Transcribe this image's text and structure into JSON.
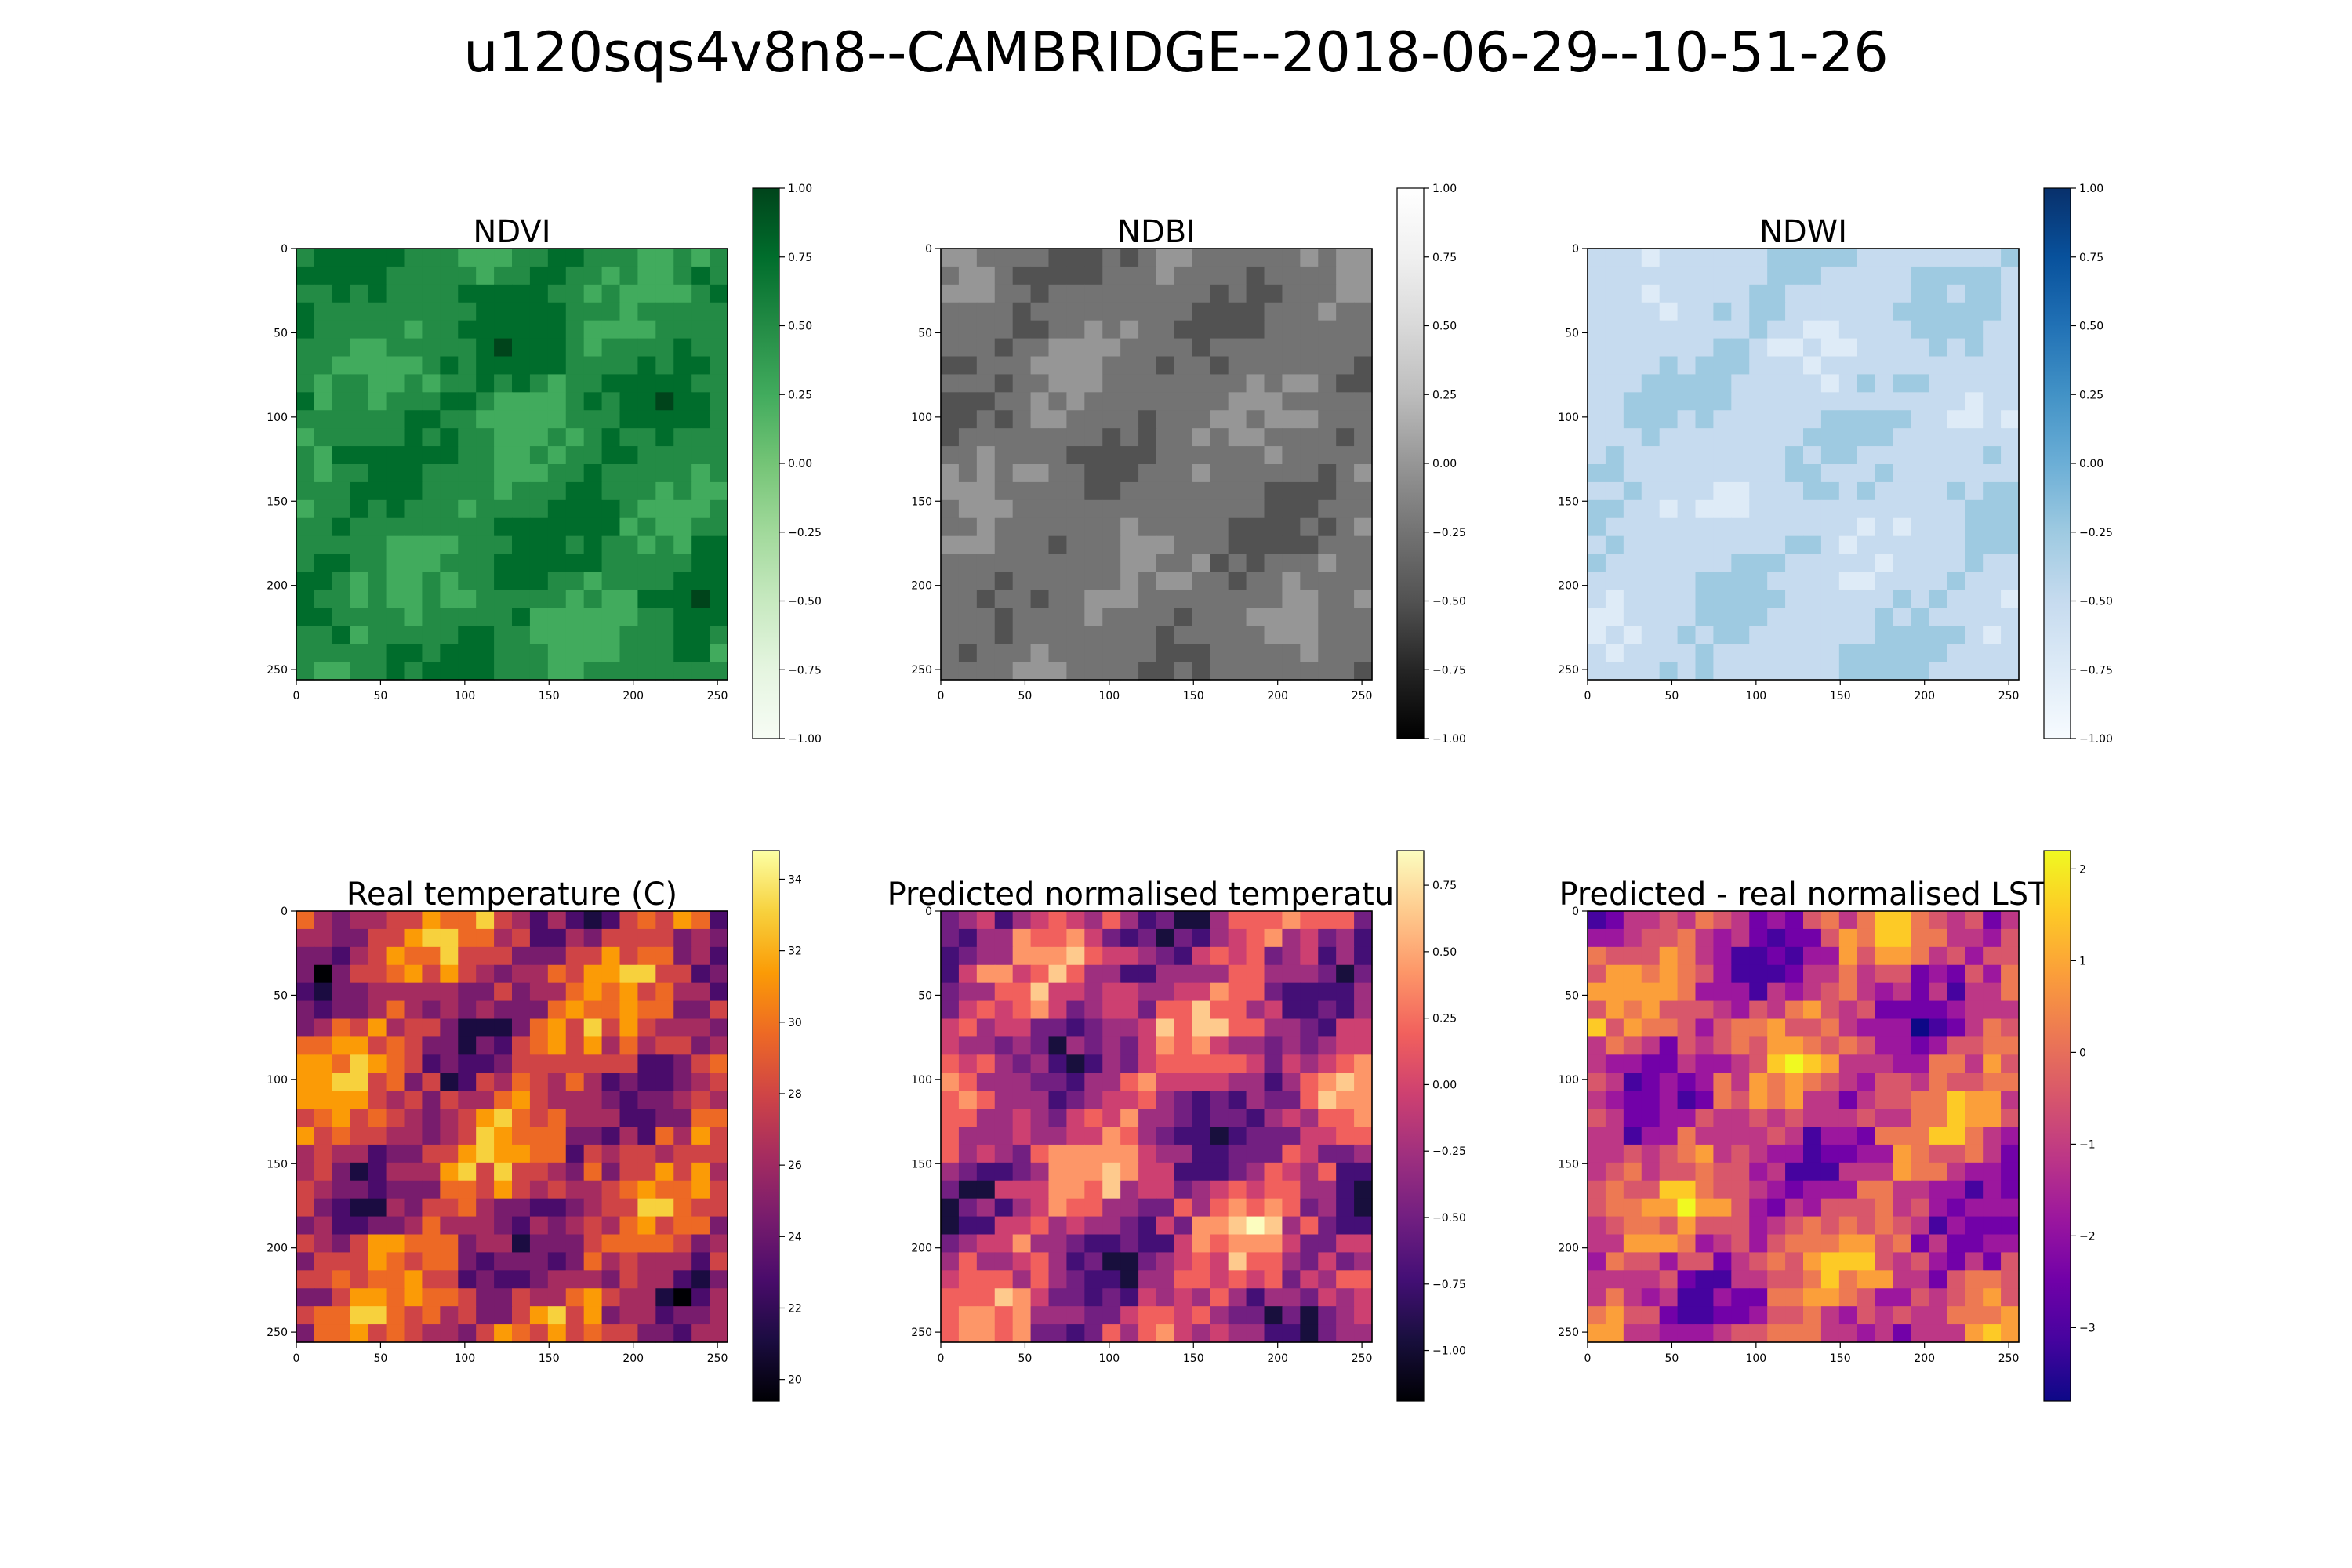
{
  "figure": {
    "title": "u120sqs4v8n8--CAMBRIDGE--2018-06-29--10-51-26"
  },
  "chart_data": [
    {
      "type": "heatmap",
      "title": "NDVI",
      "colormap": "Greens",
      "x_ticks": [
        0,
        50,
        100,
        150,
        200,
        250
      ],
      "y_ticks": [
        0,
        50,
        100,
        150,
        200,
        250
      ],
      "xlim": [
        0,
        256
      ],
      "ylim": [
        256,
        0
      ],
      "colorbar": {
        "range": [
          -1.0,
          1.0
        ],
        "ticks": [
          "1.00",
          "0.75",
          "0.50",
          "0.25",
          "0.00",
          "−0.25",
          "−0.50",
          "−0.75",
          "−1.00"
        ],
        "tick_values": [
          1.0,
          0.75,
          0.5,
          0.25,
          0.0,
          -0.25,
          -0.5,
          -0.75,
          -1.0
        ]
      },
      "value_range": [
        0.1,
        0.95
      ]
    },
    {
      "type": "heatmap",
      "title": "NDBI",
      "colormap": "Greys_r",
      "x_ticks": [
        0,
        50,
        100,
        150,
        200,
        250
      ],
      "y_ticks": [
        0,
        50,
        100,
        150,
        200,
        250
      ],
      "xlim": [
        0,
        256
      ],
      "ylim": [
        256,
        0
      ],
      "colorbar": {
        "range": [
          -1.0,
          1.0
        ],
        "ticks": [
          "1.00",
          "0.75",
          "0.50",
          "0.25",
          "0.00",
          "−0.25",
          "−0.50",
          "−0.75",
          "−1.00"
        ],
        "tick_values": [
          1.0,
          0.75,
          0.5,
          0.25,
          0.0,
          -0.25,
          -0.5,
          -0.75,
          -1.0
        ]
      },
      "value_range": [
        -0.6,
        0.1
      ]
    },
    {
      "type": "heatmap",
      "title": "NDWI",
      "colormap": "Blues",
      "x_ticks": [
        0,
        50,
        100,
        150,
        200,
        250
      ],
      "y_ticks": [
        0,
        50,
        100,
        150,
        200,
        250
      ],
      "xlim": [
        0,
        256
      ],
      "ylim": [
        256,
        0
      ],
      "colorbar": {
        "range": [
          -1.0,
          1.0
        ],
        "ticks": [
          "1.00",
          "0.75",
          "0.50",
          "0.25",
          "0.00",
          "−0.25",
          "−0.50",
          "−0.75",
          "−1.00"
        ],
        "tick_values": [
          1.0,
          0.75,
          0.5,
          0.25,
          0.0,
          -0.25,
          -0.5,
          -0.75,
          -1.0
        ]
      },
      "value_range": [
        -0.75,
        -0.15
      ]
    },
    {
      "type": "heatmap",
      "title": "Real temperature (C)",
      "colormap": "inferno",
      "x_ticks": [
        0,
        50,
        100,
        150,
        200,
        250
      ],
      "y_ticks": [
        0,
        50,
        100,
        150,
        200,
        250
      ],
      "xlim": [
        0,
        256
      ],
      "ylim": [
        256,
        0
      ],
      "colorbar": {
        "range": [
          19.4,
          34.8
        ],
        "ticks": [
          "34",
          "32",
          "30",
          "28",
          "26",
          "24",
          "22",
          "20"
        ],
        "tick_values": [
          34,
          32,
          30,
          28,
          26,
          24,
          22,
          20
        ]
      },
      "value_range": [
        19.4,
        34.8
      ]
    },
    {
      "type": "heatmap",
      "title": "Predicted normalised temperature",
      "colormap": "magma",
      "x_ticks": [
        0,
        50,
        100,
        150,
        200,
        250
      ],
      "y_ticks": [
        0,
        50,
        100,
        150,
        200,
        250
      ],
      "xlim": [
        0,
        256
      ],
      "ylim": [
        256,
        0
      ],
      "colorbar": {
        "range": [
          -1.19,
          0.88
        ],
        "ticks": [
          "0.75",
          "0.50",
          "0.25",
          "0.00",
          "−0.25",
          "−0.50",
          "−0.75",
          "−1.00"
        ],
        "tick_values": [
          0.75,
          0.5,
          0.25,
          0.0,
          -0.25,
          -0.5,
          -0.75,
          -1.0
        ]
      },
      "value_range": [
        -1.19,
        0.88
      ]
    },
    {
      "type": "heatmap",
      "title": "Predicted - real normalised LST",
      "colormap": "plasma",
      "x_ticks": [
        0,
        50,
        100,
        150,
        200,
        250
      ],
      "y_ticks": [
        0,
        50,
        100,
        150,
        200,
        250
      ],
      "xlim": [
        0,
        256
      ],
      "ylim": [
        256,
        0
      ],
      "colorbar": {
        "range": [
          -3.8,
          2.2
        ],
        "ticks": [
          "2",
          "1",
          "0",
          "−1",
          "−2",
          "−3"
        ],
        "tick_values": [
          2,
          1,
          0,
          -1,
          -2,
          -3
        ]
      },
      "value_range": [
        -3.8,
        2.2
      ]
    }
  ]
}
